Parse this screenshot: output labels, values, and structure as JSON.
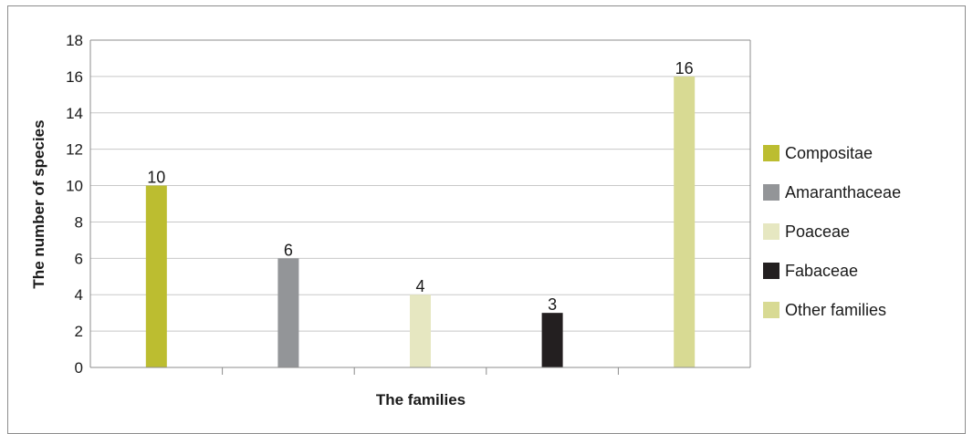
{
  "chart_data": {
    "type": "bar",
    "categories": [
      "Compositae",
      "Amaranthaceae",
      "Poaceae",
      "Fabaceae",
      "Other families"
    ],
    "values": [
      10,
      6,
      4,
      3,
      16
    ],
    "colors": [
      "#bcbd30",
      "#939598",
      "#e6e7c1",
      "#231f20",
      "#d8da93"
    ],
    "xlabel": "The families",
    "ylabel": "The number of species",
    "ylim": [
      0,
      18
    ],
    "yticks": [
      "0",
      "2",
      "4",
      "6",
      "8",
      "10",
      "12",
      "14",
      "16",
      "18"
    ],
    "data_labels": [
      "10",
      "6",
      "4",
      "3",
      "16"
    ],
    "grid": true,
    "legend_position": "right"
  }
}
